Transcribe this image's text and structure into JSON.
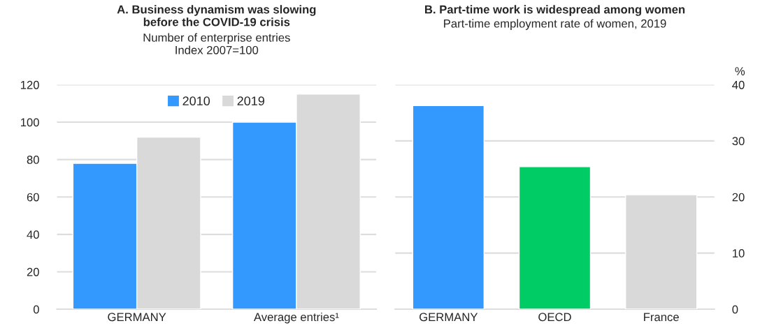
{
  "chart_data": [
    {
      "type": "bar",
      "title": "A. Business dynamism was slowing\nbefore the COVID-19 crisis",
      "subtitle": "Number of enterprise entries\nIndex 2007=100",
      "categories": [
        "GERMANY",
        "Average entries¹"
      ],
      "series": [
        {
          "name": "2010",
          "color": "#3399ff",
          "values": [
            78,
            100
          ]
        },
        {
          "name": "2019",
          "color": "#d9d9d9",
          "values": [
            92,
            115
          ]
        }
      ],
      "ylim": [
        0,
        120
      ],
      "yticks": [
        0,
        20,
        40,
        60,
        80,
        100,
        120
      ],
      "grid": "y",
      "legend": "top"
    },
    {
      "type": "bar",
      "title": "B. Part-time work is widespread among women",
      "subtitle": "Part-time employment rate of women, 2019",
      "ylabel": "%",
      "categories": [
        "GERMANY",
        "OECD",
        "France"
      ],
      "values": [
        36.3,
        25.4,
        20.4
      ],
      "colors": [
        "#3399ff",
        "#00cc66",
        "#d9d9d9"
      ],
      "ylim": [
        0,
        40
      ],
      "yticks": [
        0,
        10,
        20,
        30,
        40
      ],
      "grid": "y"
    }
  ]
}
